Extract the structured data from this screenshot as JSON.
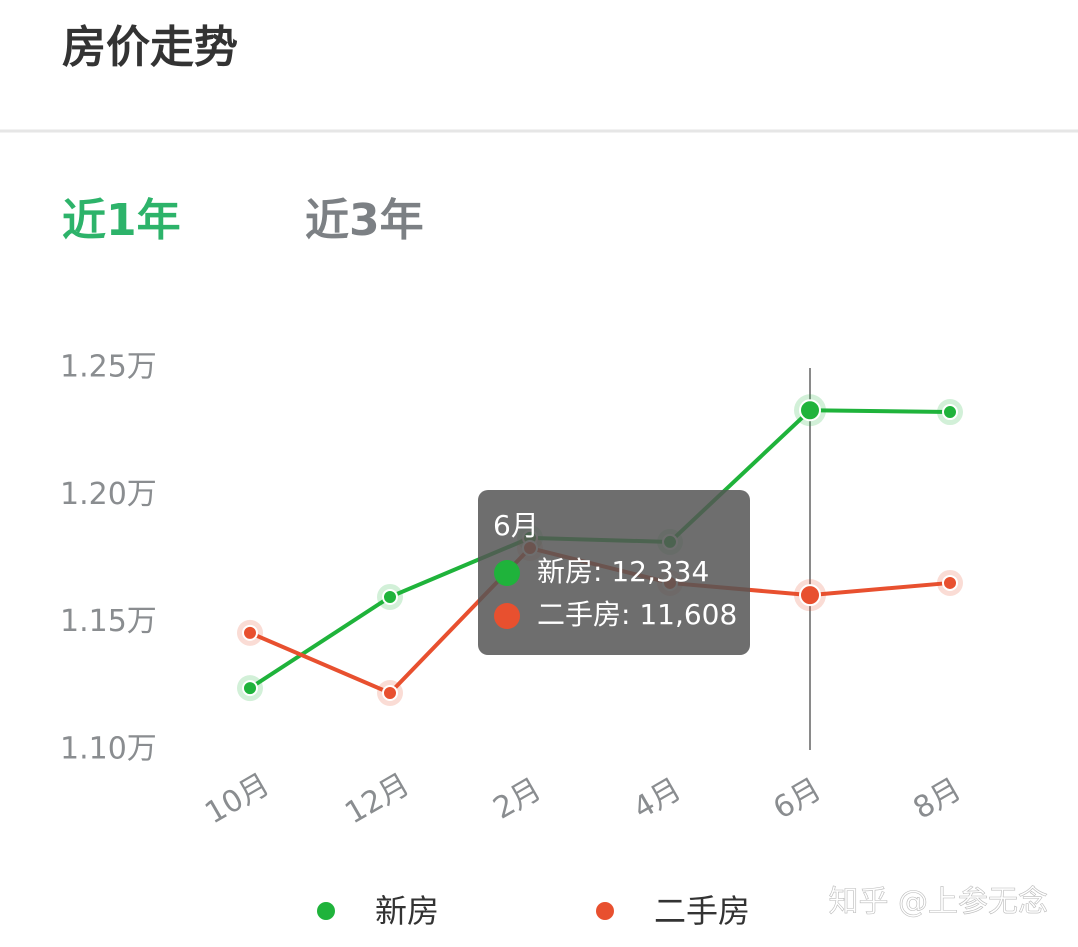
{
  "header": {
    "title": "房价走势"
  },
  "tabs": [
    {
      "label": "近1年",
      "active": true
    },
    {
      "label": "近3年",
      "active": false
    }
  ],
  "chart_data": {
    "type": "line",
    "categories": [
      "10月",
      "12月",
      "2月",
      "4月",
      "6月",
      "8月"
    ],
    "series": [
      {
        "name": "新房",
        "color": "#1fb33b",
        "values": [
          11243,
          11601,
          11833,
          11817,
          12334,
          12327
        ]
      },
      {
        "name": "二手房",
        "color": "#e8502f",
        "values": [
          11460,
          11224,
          11793,
          11656,
          11608,
          11656
        ]
      }
    ],
    "ylim": [
      11000,
      12500
    ],
    "yticks": [
      {
        "value": 11000,
        "label": "1.10万"
      },
      {
        "value": 11500,
        "label": "1.15万"
      },
      {
        "value": 12000,
        "label": "1.20万"
      },
      {
        "value": 12500,
        "label": "1.25万"
      }
    ],
    "grid": false,
    "legend": "bottom",
    "tooltip": {
      "title": "6月",
      "items": [
        "新房: 12,334",
        "二手房: 11,608"
      ]
    }
  },
  "watermark": "知乎 @上参无念"
}
